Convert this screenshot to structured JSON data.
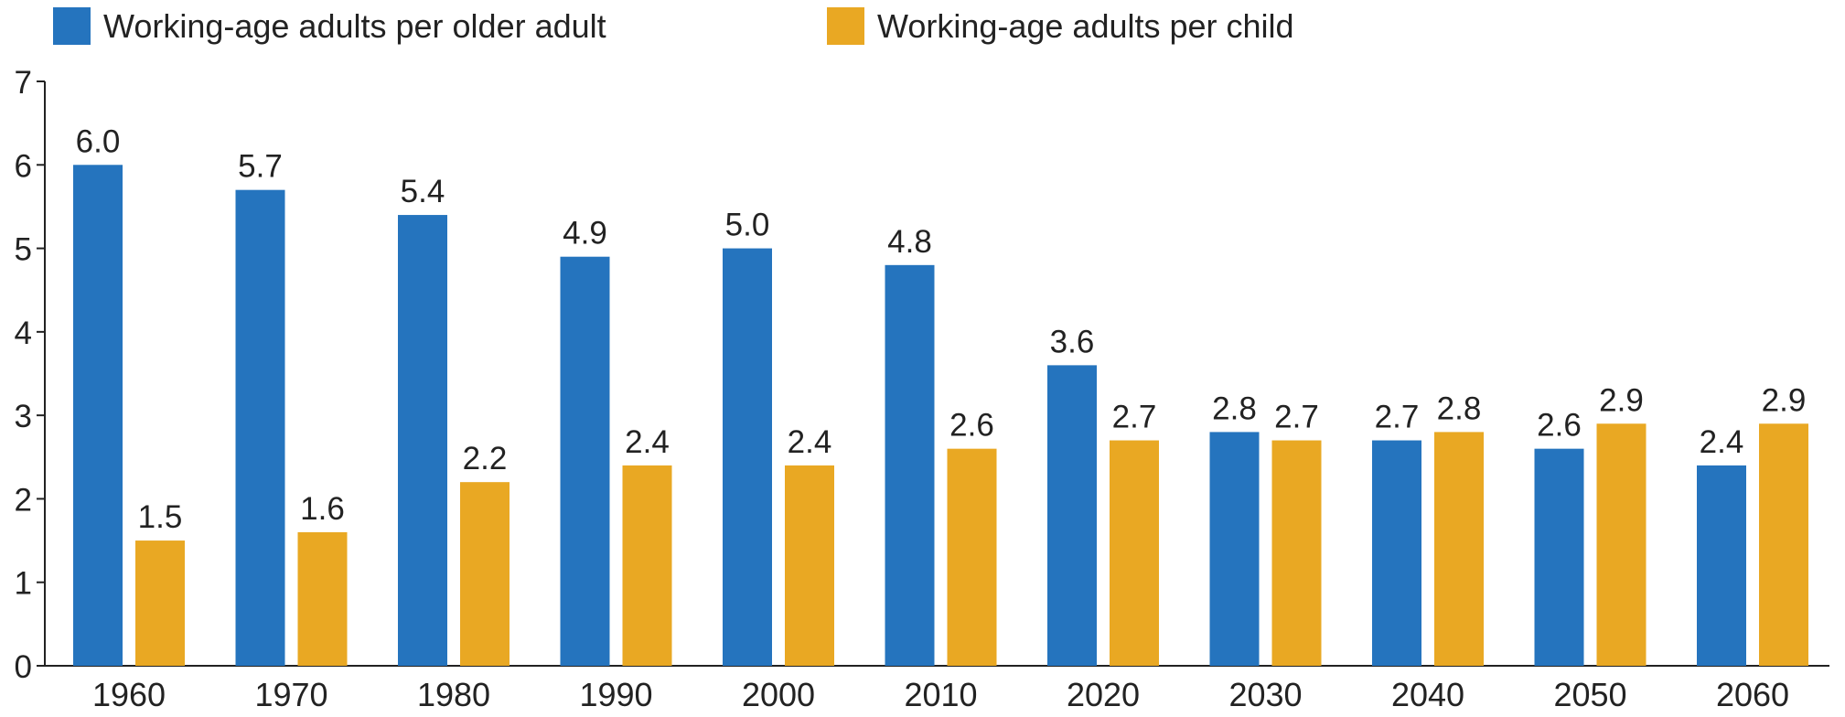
{
  "chart_data": {
    "type": "bar",
    "title": "",
    "xlabel": "",
    "ylabel": "",
    "ylim": [
      0,
      7
    ],
    "yticks": [
      0,
      1,
      2,
      3,
      4,
      5,
      6,
      7
    ],
    "grid": false,
    "legend_position": "top-left",
    "categories": [
      "1960",
      "1970",
      "1980",
      "1990",
      "2000",
      "2010",
      "2020",
      "2030",
      "2040",
      "2050",
      "2060"
    ],
    "series": [
      {
        "name": "Working-age adults per older adult",
        "color": "#2574BE",
        "values": [
          6.0,
          5.7,
          5.4,
          4.9,
          5.0,
          4.8,
          3.6,
          2.8,
          2.7,
          2.6,
          2.4
        ]
      },
      {
        "name": "Working-age adults per child",
        "color": "#E9A823",
        "values": [
          1.5,
          1.6,
          2.2,
          2.4,
          2.4,
          2.6,
          2.7,
          2.7,
          2.8,
          2.9,
          2.9
        ]
      }
    ]
  }
}
